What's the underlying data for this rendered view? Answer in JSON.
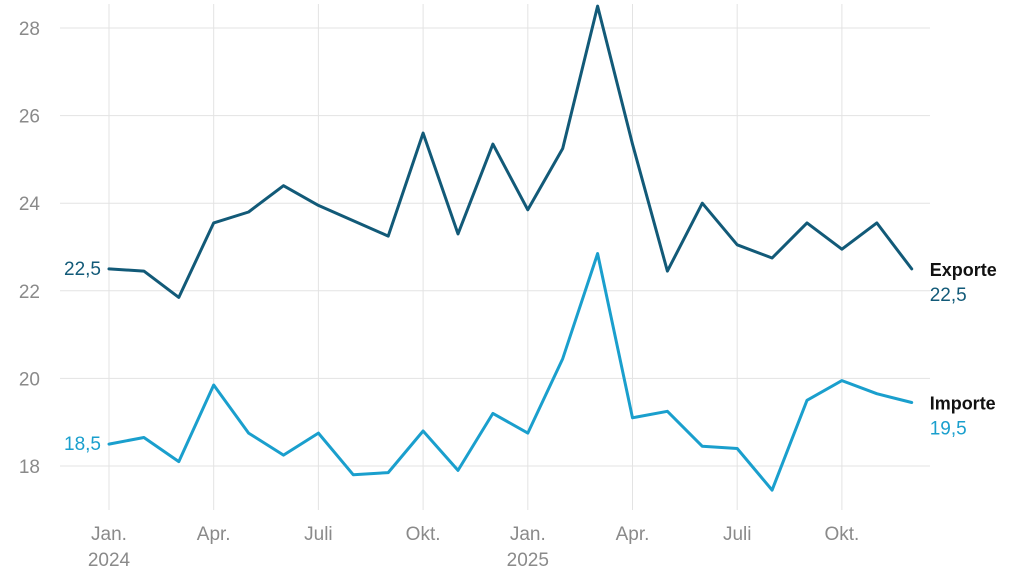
{
  "chart_data": {
    "type": "line",
    "title": "",
    "xlabel": "",
    "ylabel": "",
    "ylim": [
      17,
      28.5
    ],
    "y_ticks": [
      "18",
      "20",
      "22",
      "24",
      "26",
      "28"
    ],
    "grid": true,
    "x_tick_labels": [
      {
        "month_index": 0,
        "line1": "Jan.",
        "line2": "2024"
      },
      {
        "month_index": 3,
        "line1": "Apr.",
        "line2": ""
      },
      {
        "month_index": 6,
        "line1": "Juli",
        "line2": ""
      },
      {
        "month_index": 9,
        "line1": "Okt.",
        "line2": ""
      },
      {
        "month_index": 12,
        "line1": "Jan.",
        "line2": "2025"
      },
      {
        "month_index": 15,
        "line1": "Apr.",
        "line2": ""
      },
      {
        "month_index": 18,
        "line1": "Juli",
        "line2": ""
      },
      {
        "month_index": 21,
        "line1": "Okt.",
        "line2": ""
      }
    ],
    "x": [
      "2024-01",
      "2024-02",
      "2024-03",
      "2024-04",
      "2024-05",
      "2024-06",
      "2024-07",
      "2024-08",
      "2024-09",
      "2024-10",
      "2024-11",
      "2024-12",
      "2025-01",
      "2025-02",
      "2025-03",
      "2025-04",
      "2025-05",
      "2025-06",
      "2025-07",
      "2025-08",
      "2025-09",
      "2025-10",
      "2025-11",
      "2025-12"
    ],
    "series": [
      {
        "name": "Exporte",
        "color": "#125a78",
        "start_label": "22,5",
        "end_label": "22,5",
        "values": [
          22.5,
          22.45,
          21.85,
          23.55,
          23.8,
          24.4,
          23.95,
          23.6,
          23.25,
          25.6,
          23.3,
          25.35,
          23.85,
          25.25,
          28.5,
          25.35,
          22.45,
          24.0,
          23.05,
          22.75,
          23.55,
          22.95,
          23.55,
          22.5
        ]
      },
      {
        "name": "Importe",
        "color": "#1a9fcd",
        "start_label": "18,5",
        "end_label": "19,5",
        "values": [
          18.5,
          18.65,
          18.1,
          19.85,
          18.75,
          18.25,
          18.75,
          17.8,
          17.85,
          18.8,
          17.9,
          19.2,
          18.75,
          20.45,
          22.85,
          19.1,
          19.25,
          18.45,
          18.4,
          17.45,
          19.5,
          19.95,
          19.65,
          19.45
        ]
      }
    ]
  }
}
